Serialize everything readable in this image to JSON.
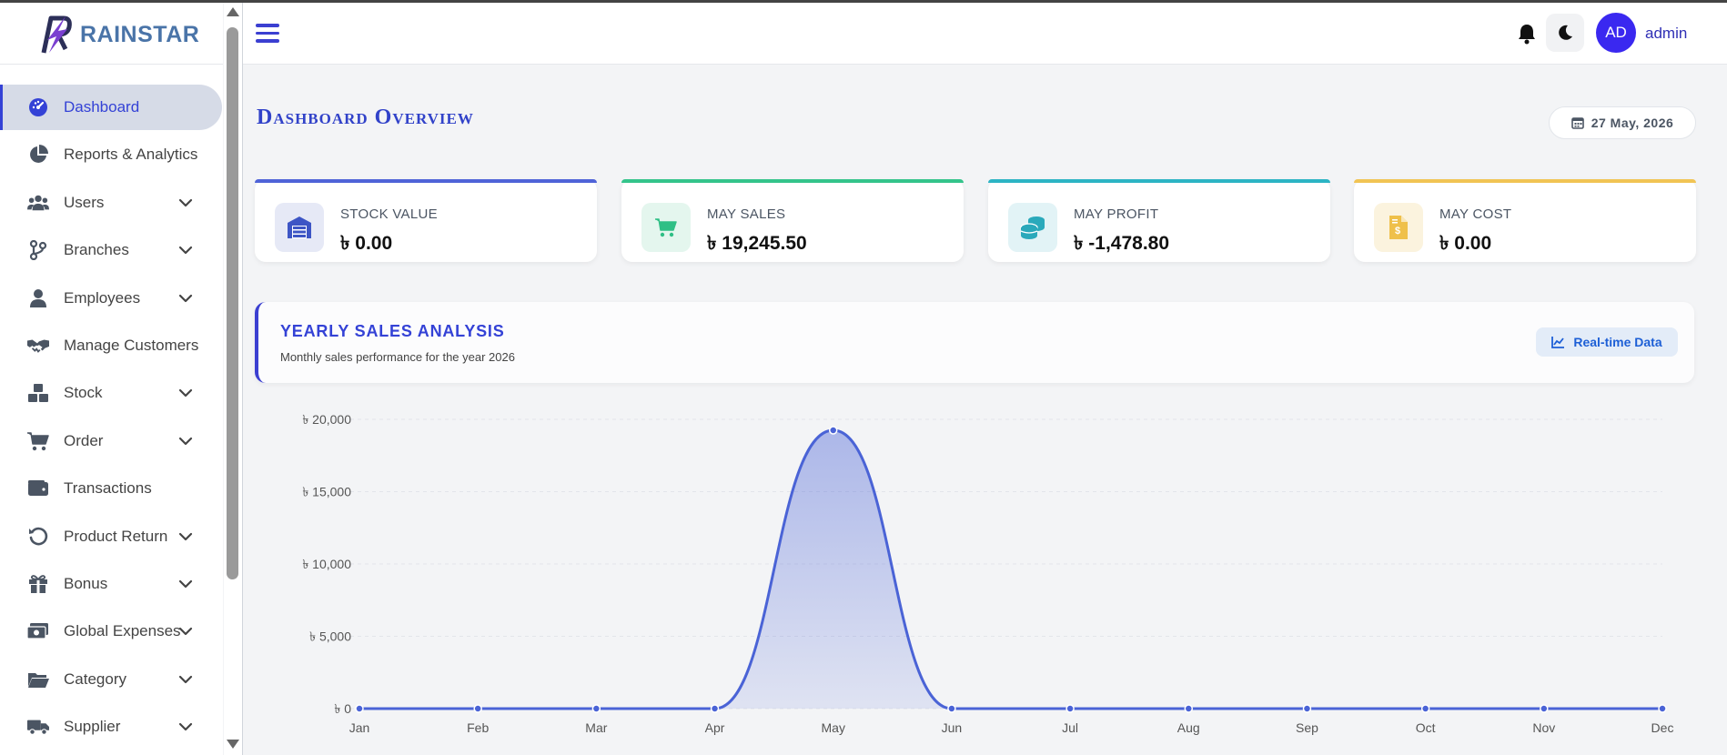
{
  "brand": {
    "logo_text": "RAINSTAR"
  },
  "sidebar": {
    "items": [
      {
        "label": "Dashboard",
        "icon": "gauge-icon",
        "expandable": false,
        "active": true
      },
      {
        "label": "Reports & Analytics",
        "icon": "pie-chart-icon",
        "expandable": false
      },
      {
        "label": "Users",
        "icon": "users-icon",
        "expandable": true
      },
      {
        "label": "Branches",
        "icon": "branch-icon",
        "expandable": true
      },
      {
        "label": "Employees",
        "icon": "employee-icon",
        "expandable": true
      },
      {
        "label": "Manage Customers",
        "icon": "handshake-icon",
        "expandable": false
      },
      {
        "label": "Stock",
        "icon": "boxes-icon",
        "expandable": true
      },
      {
        "label": "Order",
        "icon": "cart-icon",
        "expandable": true
      },
      {
        "label": "Transactions",
        "icon": "wallet-icon",
        "expandable": false
      },
      {
        "label": "Product Return",
        "icon": "undo-icon",
        "expandable": true
      },
      {
        "label": "Bonus",
        "icon": "gift-icon",
        "expandable": true
      },
      {
        "label": "Global Expenses",
        "icon": "money-icon",
        "expandable": true
      },
      {
        "label": "Category",
        "icon": "folder-icon",
        "expandable": true
      },
      {
        "label": "Supplier",
        "icon": "truck-icon",
        "expandable": true
      }
    ]
  },
  "header": {
    "avatar_initials": "AD",
    "username": "admin"
  },
  "page": {
    "title": "Dashboard Overview",
    "date": "27 May, 2026"
  },
  "cards": [
    {
      "label": "STOCK VALUE",
      "value": "৳ 0.00",
      "color": "#4f63d8",
      "icon": "warehouse-icon",
      "icon_bg": "#e6e9f6",
      "icon_color": "#3d55c5"
    },
    {
      "label": "MAY SALES",
      "value": "৳ 19,245.50",
      "color": "#34c48b",
      "icon": "cart-icon",
      "icon_bg": "#e4f6ee",
      "icon_color": "#2fbf85"
    },
    {
      "label": "MAY PROFIT",
      "value": "৳ -1,478.80",
      "color": "#2cb4c4",
      "icon": "coins-icon",
      "icon_bg": "#e2f3f6",
      "icon_color": "#2aa9bb"
    },
    {
      "label": "MAY COST",
      "value": "৳ 0.00",
      "color": "#f1c454",
      "icon": "invoice-icon",
      "icon_bg": "#fbf3de",
      "icon_color": "#efc04a"
    }
  ],
  "analysis": {
    "title": "YEARLY SALES ANALYSIS",
    "subtitle": "Monthly sales performance for the year 2026",
    "button": "Real-time Data"
  },
  "chart_data": {
    "type": "area",
    "categories": [
      "Jan",
      "Feb",
      "Mar",
      "Apr",
      "May",
      "Jun",
      "Jul",
      "Aug",
      "Sep",
      "Oct",
      "Nov",
      "Dec"
    ],
    "series": [
      {
        "values": [
          0,
          0,
          0,
          0,
          19245.5,
          0,
          0,
          0,
          0,
          0,
          0,
          0
        ]
      }
    ],
    "yticks": [
      "৳ 0",
      "৳ 5,000",
      "৳ 10,000",
      "৳ 15,000",
      "৳ 20,000"
    ],
    "ylim": [
      0,
      20000
    ],
    "grid": true,
    "color": "#4a63d6"
  }
}
